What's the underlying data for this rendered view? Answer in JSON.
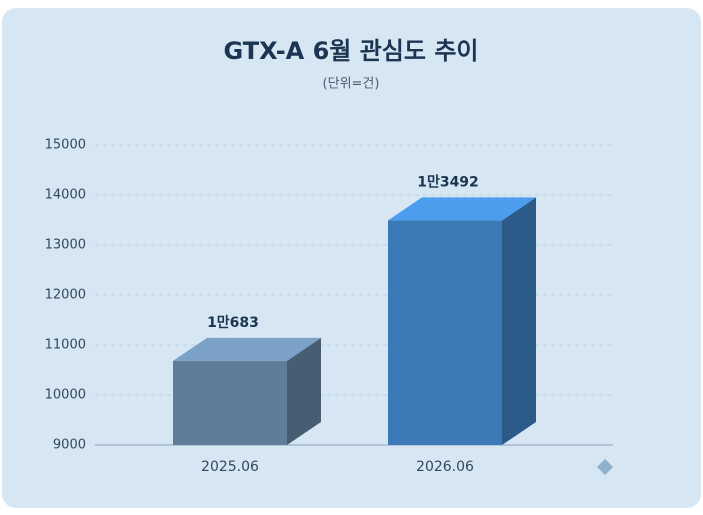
{
  "chart_data": {
    "type": "bar3d",
    "title": "GTX-A 6월 관심도 추이",
    "subtitle": "(단위=건)",
    "categories": [
      "2025.06",
      "2026.06"
    ],
    "values": [
      10683,
      13492
    ],
    "value_labels": [
      "1만683",
      "1만3492"
    ],
    "colors": [
      "#5f7c98",
      "#3b79b7"
    ],
    "ylim": [
      9000,
      15000
    ],
    "yticks": [
      9000,
      10000,
      11000,
      12000,
      13000,
      14000,
      15000
    ],
    "grid": true
  }
}
